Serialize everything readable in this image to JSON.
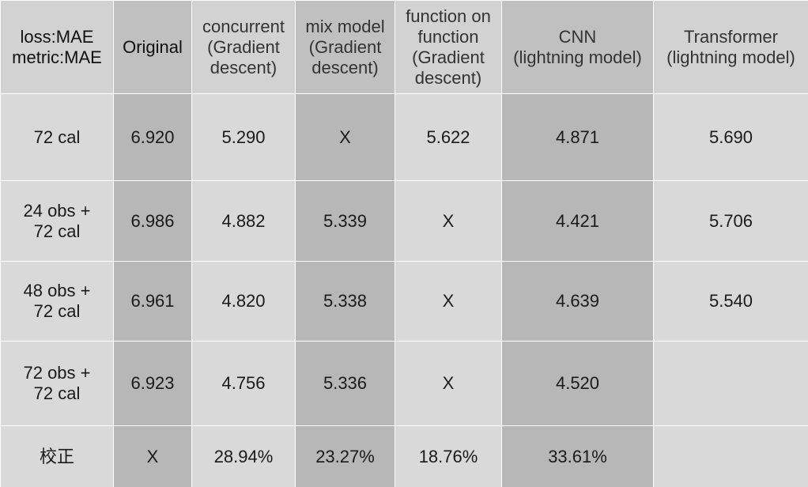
{
  "table": {
    "headers": [
      [
        "loss:MAE",
        "metric:MAE"
      ],
      [
        "Original"
      ],
      [
        "concurrent",
        "(Gradient",
        "descent)"
      ],
      [
        "mix model",
        "(Gradient",
        "descent)"
      ],
      [
        "function on",
        "function",
        "(Gradient",
        "descent)"
      ],
      [
        "CNN",
        "(lightning model)"
      ],
      [
        "Transformer",
        "(lightning model)"
      ]
    ],
    "rows": [
      {
        "label": [
          "72 cal"
        ],
        "cells": [
          "6.920",
          "5.290",
          "X",
          "5.622",
          "4.871",
          "5.690"
        ]
      },
      {
        "label": [
          "24 obs +",
          "72 cal"
        ],
        "cells": [
          "6.986",
          "4.882",
          "5.339",
          "X",
          "4.421",
          "5.706"
        ]
      },
      {
        "label": [
          "48 obs +",
          "72 cal"
        ],
        "cells": [
          "6.961",
          "4.820",
          "5.338",
          "X",
          "4.639",
          "5.540"
        ]
      },
      {
        "label": [
          "72 obs +",
          "72 cal"
        ],
        "cells": [
          "6.923",
          "4.756",
          "5.336",
          "X",
          "4.520",
          ""
        ]
      },
      {
        "label": [
          "校正"
        ],
        "cells": [
          "X",
          "28.94%",
          "23.27%",
          "18.76%",
          "33.61%",
          ""
        ]
      }
    ]
  }
}
